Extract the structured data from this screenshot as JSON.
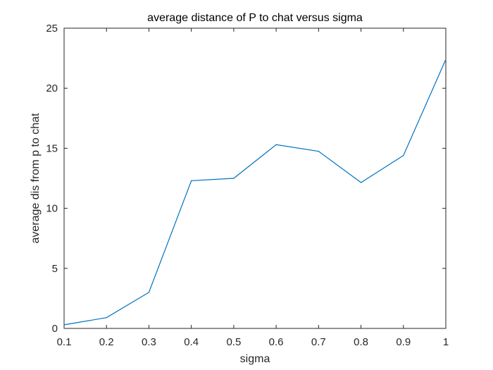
{
  "chart_data": {
    "type": "line",
    "title": "average distance of P to chat versus sigma",
    "xlabel": "sigma",
    "ylabel": "average dis from p to chat",
    "xlim": [
      0.1,
      1
    ],
    "ylim": [
      0,
      25
    ],
    "xticks": [
      "0.1",
      "0.2",
      "0.3",
      "0.4",
      "0.5",
      "0.6",
      "0.7",
      "0.8",
      "0.9",
      "1"
    ],
    "yticks": [
      "0",
      "5",
      "10",
      "15",
      "20",
      "25"
    ],
    "grid": false,
    "series": [
      {
        "color": "#0072BD",
        "x": [
          0.1,
          0.2,
          0.3,
          0.4,
          0.5,
          0.6,
          0.7,
          0.8,
          0.9,
          1.0
        ],
        "values": [
          0.3,
          0.9,
          3.0,
          12.3,
          12.5,
          15.3,
          14.75,
          12.15,
          14.4,
          22.4
        ]
      }
    ]
  }
}
